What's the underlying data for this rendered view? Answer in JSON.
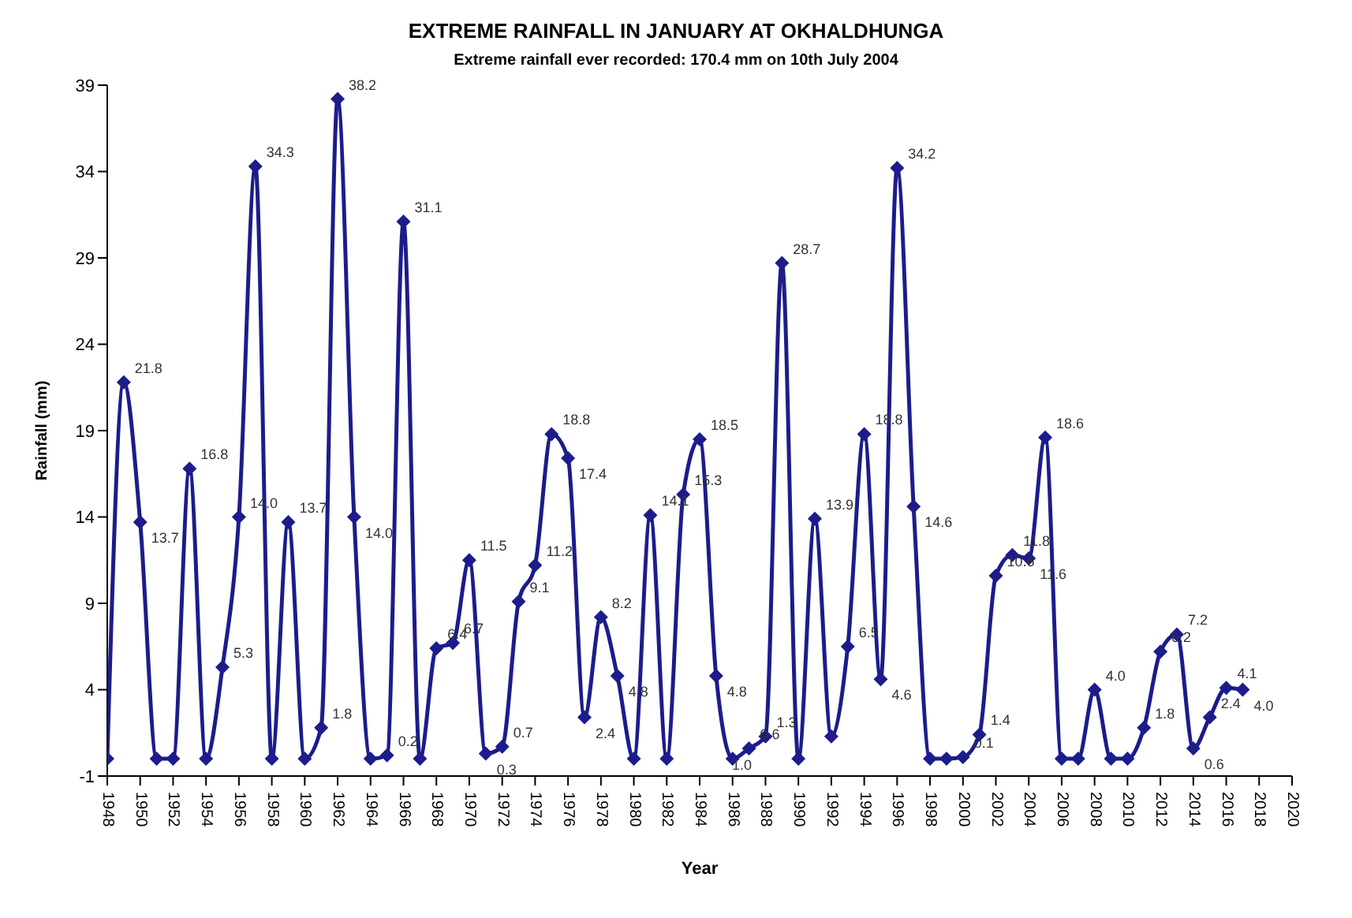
{
  "chart_data": {
    "type": "line",
    "title": "EXTREME RAINFALL IN JANUARY AT OKHALDHUNGA",
    "subtitle": "Extreme rainfall ever recorded: 170.4 mm on 10th July 2004",
    "xlabel": "Year",
    "ylabel": "Rainfall (mm)",
    "x": [
      1948,
      1949,
      1950,
      1951,
      1952,
      1953,
      1954,
      1955,
      1956,
      1957,
      1958,
      1959,
      1960,
      1961,
      1962,
      1963,
      1964,
      1965,
      1966,
      1967,
      1968,
      1969,
      1970,
      1971,
      1972,
      1973,
      1974,
      1975,
      1976,
      1977,
      1978,
      1979,
      1980,
      1981,
      1982,
      1983,
      1984,
      1985,
      1986,
      1987,
      1988,
      1989,
      1990,
      1991,
      1992,
      1993,
      1994,
      1995,
      1996,
      1997,
      1998,
      1999,
      2000,
      2001,
      2002,
      2003,
      2004,
      2005,
      2006,
      2007,
      2008,
      2009,
      2010,
      2011,
      2012,
      2013,
      2014,
      2015,
      2016,
      2017
    ],
    "series": [
      {
        "color": "#1c1c8c",
        "values": [
          0,
          21.8,
          13.7,
          0,
          0,
          16.8,
          0,
          5.3,
          14.0,
          34.3,
          0,
          13.7,
          0,
          1.8,
          38.2,
          14.0,
          0,
          0.2,
          31.1,
          0,
          6.4,
          6.7,
          11.5,
          0.3,
          0.7,
          9.1,
          11.2,
          18.8,
          17.4,
          2.4,
          8.2,
          4.8,
          0,
          14.1,
          0,
          15.3,
          18.5,
          4.8,
          0,
          0.6,
          1.3,
          28.7,
          0,
          13.9,
          1.3,
          6.5,
          18.8,
          4.6,
          34.2,
          14.6,
          0,
          0,
          0.1,
          1.4,
          10.6,
          11.8,
          11.6,
          18.6,
          0,
          0,
          4.0,
          0,
          0,
          1.8,
          6.2,
          7.2,
          0.6,
          2.4,
          4.1,
          4.0
        ],
        "value_labels": [
          null,
          "21.8",
          "13.7",
          null,
          null,
          "16.8",
          null,
          "5.3",
          "14.0",
          "34.3",
          null,
          "13.7",
          null,
          "1.8",
          "38.2",
          "14.0",
          null,
          "0.2",
          "31.1",
          null,
          "6.4",
          "6.7",
          "11.5",
          "0.3",
          "0.7",
          "9.1",
          "11.2",
          "18.8",
          "17.4",
          "2.4",
          "8.2",
          "4.8",
          null,
          "14.1",
          null,
          "15.3",
          "18.5",
          "4.8",
          null,
          "0.6",
          "1.3",
          "28.7",
          null,
          "13.9",
          null,
          "6.5",
          "18.8",
          "4.6",
          "34.2",
          "14.6",
          null,
          null,
          "0.1",
          "1.4",
          "10.6",
          "11.8",
          "11.6",
          "18.6",
          null,
          null,
          "4.0",
          null,
          null,
          "1.8",
          "6.2",
          "7.2",
          "0.6",
          "2.4",
          "4.1",
          "4.0"
        ]
      }
    ],
    "annotations": [
      "1.0"
    ],
    "xlim": [
      1948,
      2020
    ],
    "xticks": [
      1948,
      1950,
      1952,
      1954,
      1956,
      1958,
      1960,
      1962,
      1964,
      1966,
      1968,
      1970,
      1972,
      1974,
      1976,
      1978,
      1980,
      1982,
      1984,
      1986,
      1988,
      1990,
      1992,
      1994,
      1996,
      1998,
      2000,
      2002,
      2004,
      2006,
      2008,
      2010,
      2012,
      2014,
      2016,
      2018,
      2020
    ],
    "ylim": [
      -1,
      39
    ],
    "yticks": [
      -1,
      4,
      9,
      14,
      19,
      24,
      29,
      34,
      39
    ],
    "grid": false,
    "legend": false,
    "marker": "diamond",
    "line_style": "solid"
  }
}
